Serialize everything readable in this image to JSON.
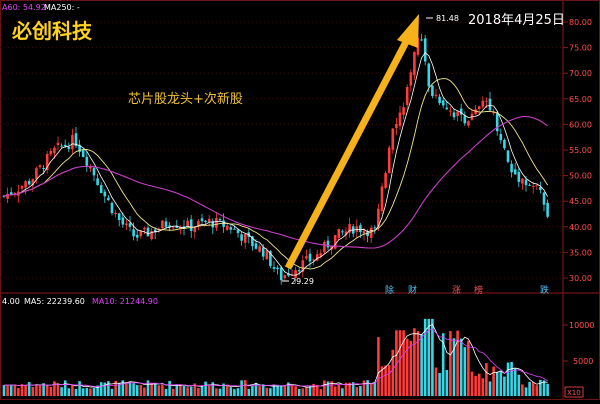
{
  "header": {
    "ma_line": [
      {
        "label": "A60: 54.92",
        "color": "#e040fb"
      },
      {
        "label": "MA250: -",
        "color": "#ffffff"
      }
    ]
  },
  "title": "必创科技",
  "subtitle": "芯片股龙头+次新股",
  "annotation": {
    "date": "2018年4月25日",
    "high_label": "81.48",
    "low_label": "29.29"
  },
  "price_axis": {
    "ticks": [
      "80.00",
      "75.00",
      "70.00",
      "65.00",
      "60.00",
      "55.00",
      "50.00",
      "45.00",
      "40.00",
      "35.00",
      "30.00"
    ]
  },
  "event_tags": [
    {
      "label": "除",
      "color": "#4fc3f7"
    },
    {
      "label": "财",
      "color": "#4fc3f7"
    },
    {
      "label": "涨",
      "color": "#ef5350"
    },
    {
      "label": "榜",
      "color": "#ef5350"
    },
    {
      "label": "跌",
      "color": "#4fc3f7"
    }
  ],
  "volume_header": {
    "labels": [
      {
        "label": "4.00",
        "color": "#ffffff"
      },
      {
        "label": "MA5: 22239.60",
        "color": "#ffffff"
      },
      {
        "label": "MA10: 21244.90",
        "color": "#e040fb"
      }
    ]
  },
  "volume_axis": {
    "ticks": [
      "10000",
      "5000"
    ],
    "unit": "X10"
  },
  "colors": {
    "up": "#ff3b3b",
    "down": "#38d6e6",
    "ma_long": "#c83cc8",
    "ma_short": "#f0e68c",
    "ma_mid": "#ffffff",
    "arrow": "#f6b21b",
    "title": "#ffd21f",
    "subtitle": "#f2c230"
  },
  "chart_data": {
    "type": "candlestick",
    "price_range": [
      27,
      84
    ],
    "high": 81.48,
    "low": 29.29,
    "volume_range": [
      0,
      14000
    ]
  }
}
